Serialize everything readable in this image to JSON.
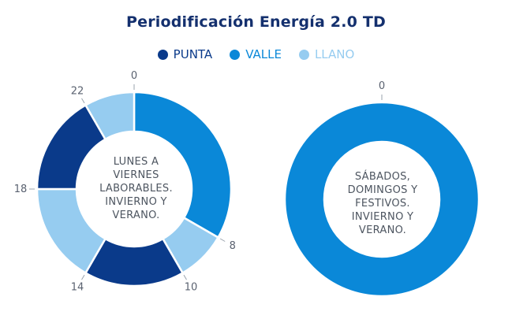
{
  "title": "Periodificación Energía 2.0 TD",
  "colors": {
    "punta": "#0a3a8a",
    "valle": "#0a88d8",
    "llano": "#96ccf0",
    "label": "#5a6270"
  },
  "legend": [
    {
      "label": "PUNTA",
      "color": "#0a3a8a"
    },
    {
      "label": "VALLE",
      "color": "#0a88d8"
    },
    {
      "label": "LLANO",
      "color": "#96ccf0"
    }
  ],
  "chart_data": [
    {
      "type": "pie",
      "center_text": "LUNES A VIERNES LABORABLES. INVIERNO Y VERANO.",
      "center_lines": [
        "LUNES A",
        "VIERNES",
        "LABORABLES.",
        "INVIERNO Y",
        "VERANO."
      ],
      "unit": "hour",
      "slices": [
        {
          "series": "VALLE",
          "from": 0,
          "to": 8,
          "color": "#0a88d8"
        },
        {
          "series": "LLANO",
          "from": 8,
          "to": 10,
          "color": "#96ccf0"
        },
        {
          "series": "PUNTA",
          "from": 10,
          "to": 14,
          "color": "#0a3a8a"
        },
        {
          "series": "LLANO",
          "from": 14,
          "to": 18,
          "color": "#96ccf0"
        },
        {
          "series": "PUNTA",
          "from": 18,
          "to": 22,
          "color": "#0a3a8a"
        },
        {
          "series": "LLANO",
          "from": 22,
          "to": 24,
          "color": "#96ccf0"
        }
      ],
      "tick_labels": [
        "0",
        "8",
        "10",
        "14",
        "18",
        "22"
      ]
    },
    {
      "type": "pie",
      "center_text": "SÁBADOS, DOMINGOS Y FESTIVOS. INVIERNO Y VERANO.",
      "center_lines": [
        "SÁBADOS,",
        "DOMINGOS Y",
        "FESTIVOS.",
        "INVIERNO Y",
        "VERANO."
      ],
      "unit": "hour",
      "slices": [
        {
          "series": "VALLE",
          "from": 0,
          "to": 24,
          "color": "#0a88d8"
        }
      ],
      "tick_labels": [
        "0"
      ]
    }
  ]
}
